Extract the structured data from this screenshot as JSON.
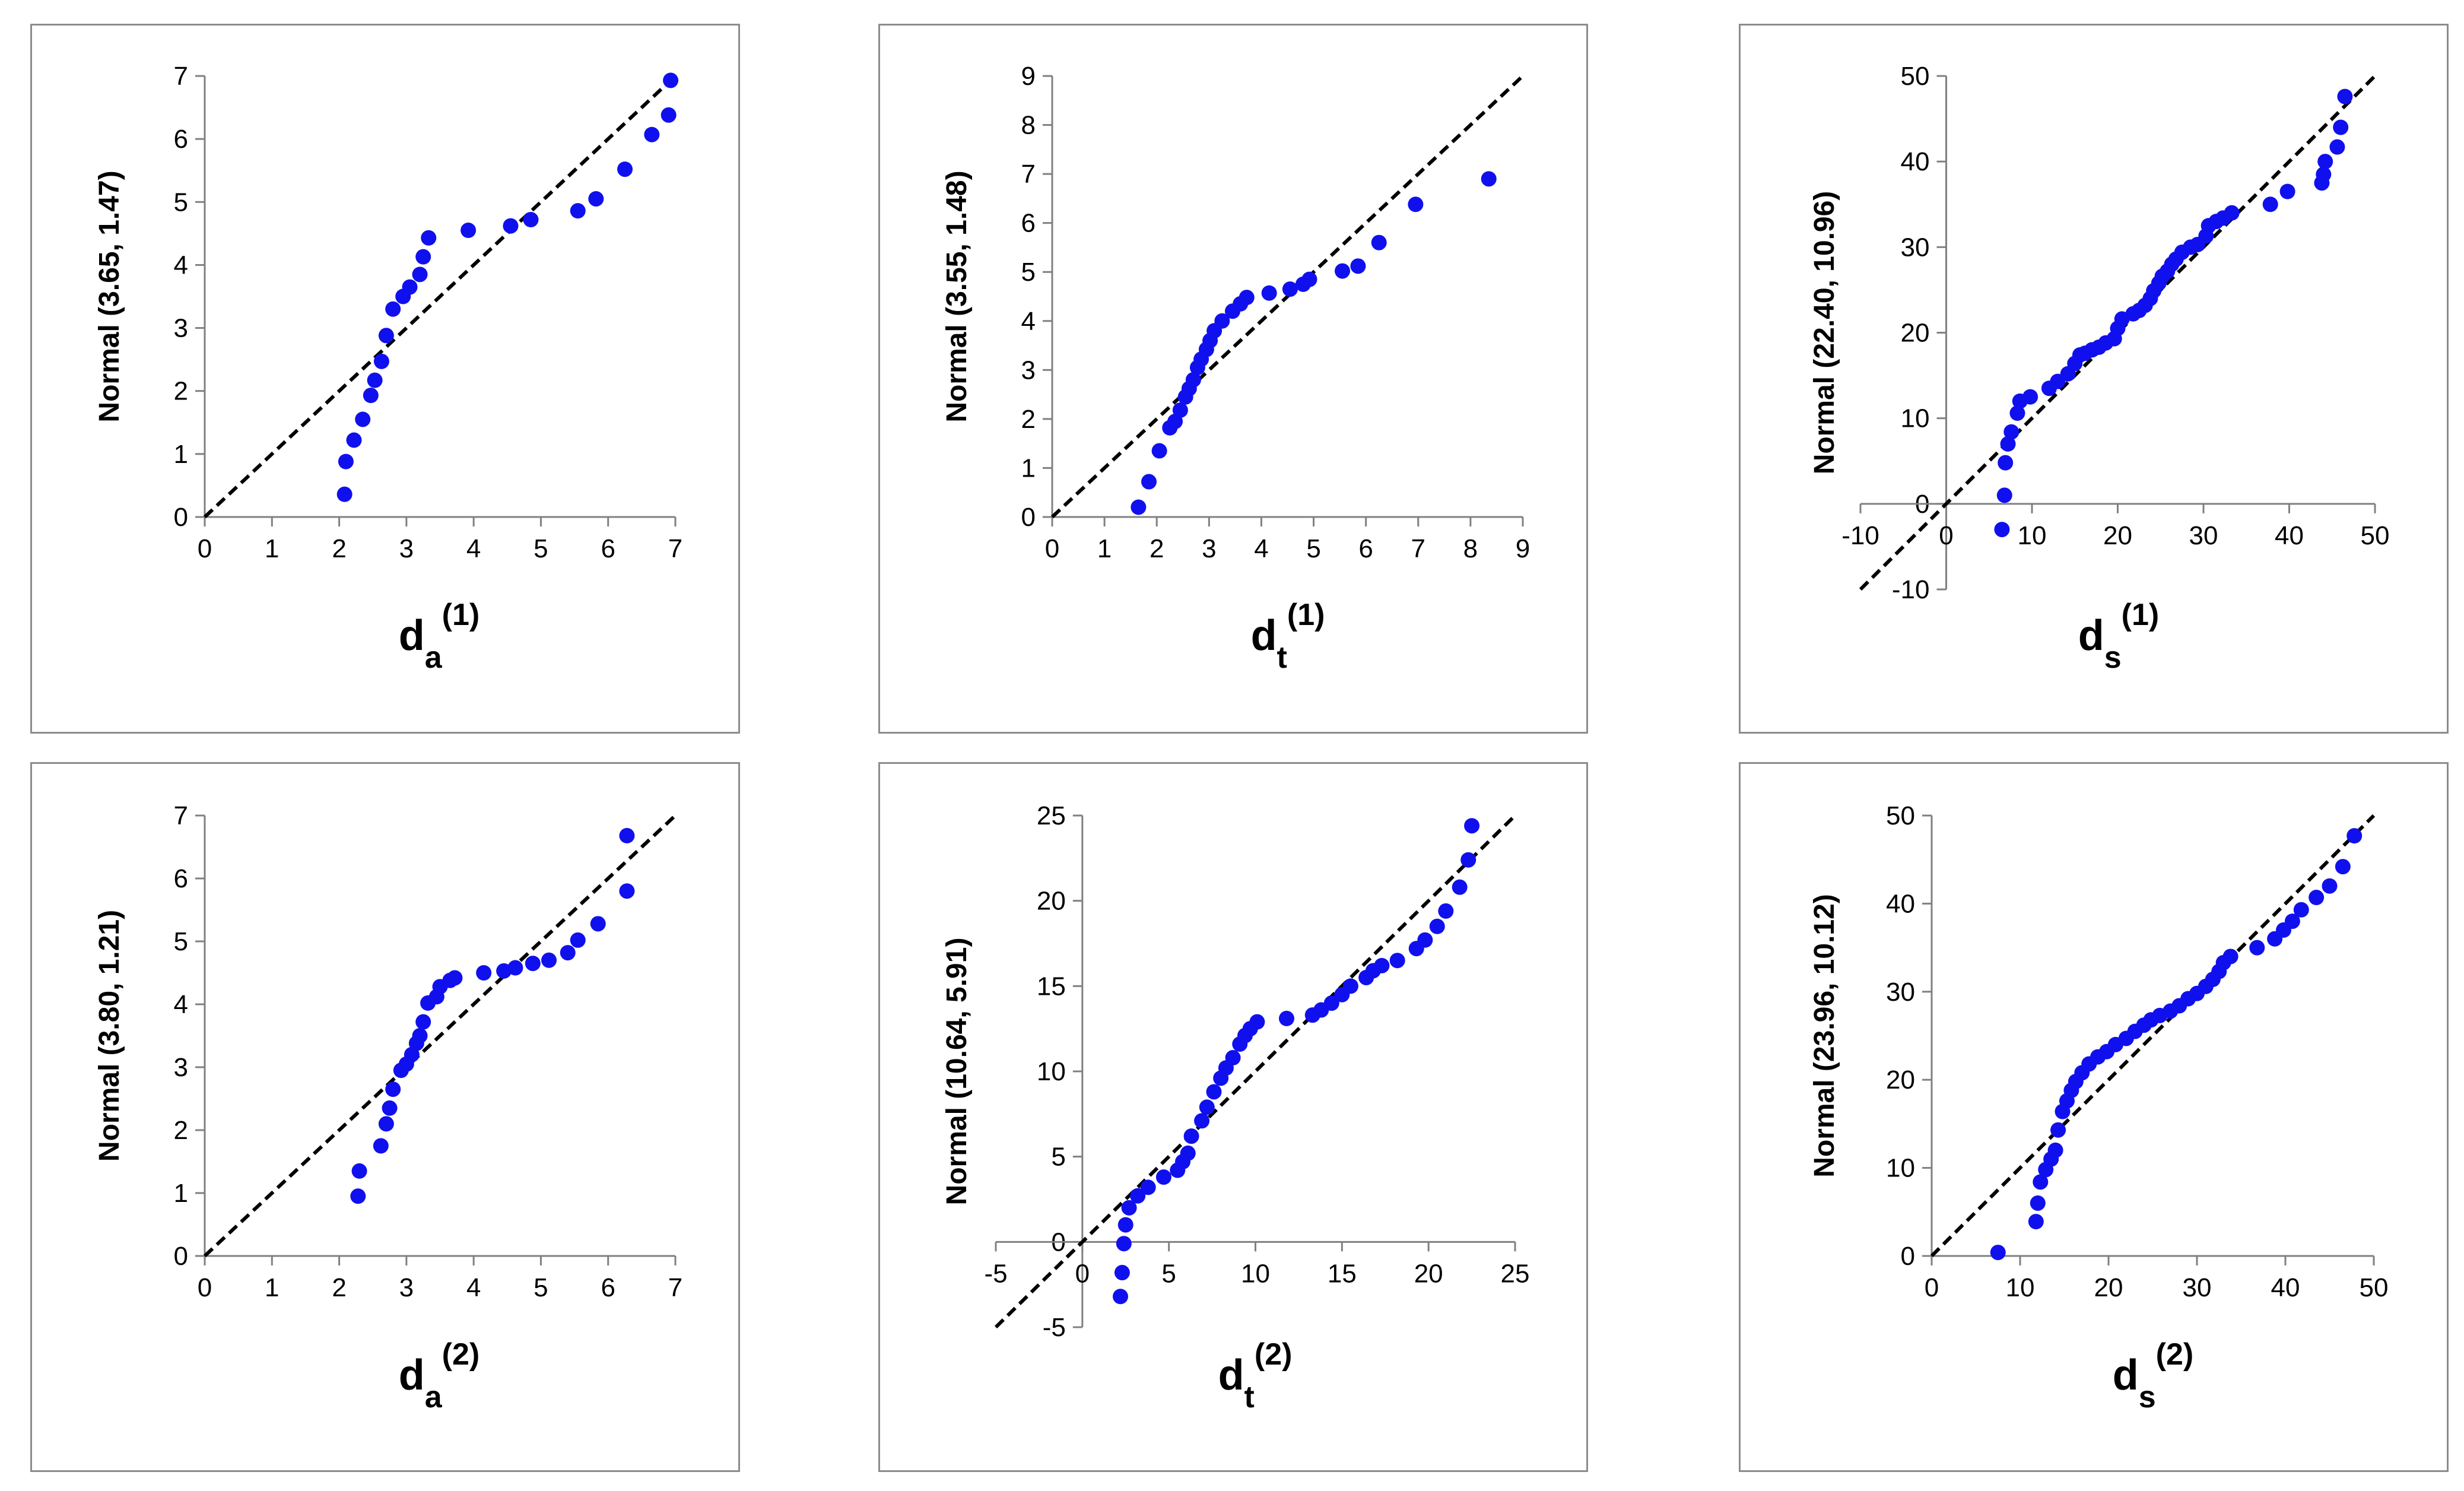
{
  "colors": {
    "points": "#1010EE",
    "reference_line": "#000000",
    "axis": "#808080",
    "frame": "#8c8c8c"
  },
  "chart_data": [
    {
      "type": "scatter",
      "title": "",
      "xlabel_base": "d",
      "xlabel_sub": "a",
      "xlabel_sup": "(1)",
      "ylabel": "Normal (3.65, 1.47)",
      "xlim": [
        0,
        7
      ],
      "ylim": [
        0,
        7
      ],
      "xticks": [
        0,
        1,
        2,
        3,
        4,
        5,
        6,
        7
      ],
      "yticks": [
        0,
        1,
        2,
        3,
        4,
        5,
        6,
        7
      ],
      "reference_line": [
        [
          0,
          0
        ],
        [
          7,
          7
        ]
      ],
      "points": [
        [
          2.08,
          0.36
        ],
        [
          2.1,
          0.88
        ],
        [
          2.22,
          1.22
        ],
        [
          2.35,
          1.55
        ],
        [
          2.47,
          1.93
        ],
        [
          2.53,
          2.17
        ],
        [
          2.63,
          2.47
        ],
        [
          2.7,
          2.88
        ],
        [
          2.8,
          3.3
        ],
        [
          2.95,
          3.5
        ],
        [
          3.05,
          3.65
        ],
        [
          3.2,
          3.85
        ],
        [
          3.25,
          4.13
        ],
        [
          3.33,
          4.43
        ],
        [
          3.92,
          4.55
        ],
        [
          4.55,
          4.62
        ],
        [
          4.85,
          4.72
        ],
        [
          5.55,
          4.86
        ],
        [
          5.82,
          5.05
        ],
        [
          6.25,
          5.52
        ],
        [
          6.65,
          6.07
        ],
        [
          6.9,
          6.38
        ],
        [
          6.93,
          6.93
        ]
      ]
    },
    {
      "type": "scatter",
      "title": "",
      "xlabel_base": "d",
      "xlabel_sub": "t",
      "xlabel_sup": "(1)",
      "ylabel": "Normal (3.55, 1.48)",
      "xlim": [
        0,
        9
      ],
      "ylim": [
        0,
        9
      ],
      "xticks": [
        0,
        1,
        2,
        3,
        4,
        5,
        6,
        7,
        8,
        9
      ],
      "yticks": [
        0,
        1,
        2,
        3,
        4,
        5,
        6,
        7,
        8,
        9
      ],
      "reference_line": [
        [
          0,
          0
        ],
        [
          9,
          9
        ]
      ],
      "points": [
        [
          1.65,
          0.2
        ],
        [
          1.85,
          0.72
        ],
        [
          2.05,
          1.35
        ],
        [
          2.25,
          1.82
        ],
        [
          2.35,
          1.95
        ],
        [
          2.45,
          2.18
        ],
        [
          2.55,
          2.45
        ],
        [
          2.62,
          2.62
        ],
        [
          2.7,
          2.8
        ],
        [
          2.78,
          3.05
        ],
        [
          2.85,
          3.22
        ],
        [
          2.95,
          3.42
        ],
        [
          3.02,
          3.6
        ],
        [
          3.1,
          3.8
        ],
        [
          3.25,
          4.0
        ],
        [
          3.45,
          4.2
        ],
        [
          3.6,
          4.35
        ],
        [
          3.72,
          4.48
        ],
        [
          4.15,
          4.57
        ],
        [
          4.55,
          4.65
        ],
        [
          4.8,
          4.75
        ],
        [
          4.92,
          4.85
        ],
        [
          5.55,
          5.02
        ],
        [
          5.85,
          5.12
        ],
        [
          6.25,
          5.6
        ],
        [
          6.95,
          6.38
        ],
        [
          8.35,
          6.9
        ]
      ]
    },
    {
      "type": "scatter",
      "title": "",
      "xlabel_base": "d",
      "xlabel_sub": "s",
      "xlabel_sup": "(1)",
      "ylabel": "Normal (22.40, 10.96)",
      "xlim": [
        -10,
        50
      ],
      "ylim": [
        -10,
        50
      ],
      "xticks": [
        -10,
        0,
        10,
        20,
        30,
        40,
        50
      ],
      "yticks": [
        -10,
        0,
        10,
        20,
        30,
        40,
        50
      ],
      "reference_line": [
        [
          -10,
          -10
        ],
        [
          50,
          50
        ]
      ],
      "points": [
        [
          6.5,
          -3
        ],
        [
          6.8,
          1
        ],
        [
          6.9,
          4.8
        ],
        [
          7.2,
          7
        ],
        [
          7.6,
          8.4
        ],
        [
          8.3,
          10.6
        ],
        [
          8.6,
          12
        ],
        [
          9.8,
          12.5
        ],
        [
          12,
          13.5
        ],
        [
          13,
          14.3
        ],
        [
          14.2,
          15.2
        ],
        [
          15,
          16.4
        ],
        [
          15.6,
          17.4
        ],
        [
          16.2,
          17.6
        ],
        [
          17,
          18
        ],
        [
          17.8,
          18.3
        ],
        [
          18.6,
          18.8
        ],
        [
          19.6,
          19.3
        ],
        [
          20,
          20.5
        ],
        [
          20.5,
          21.6
        ],
        [
          21.8,
          22.2
        ],
        [
          22.5,
          22.6
        ],
        [
          23.2,
          23.2
        ],
        [
          23.8,
          24
        ],
        [
          24.2,
          24.9
        ],
        [
          24.8,
          25.8
        ],
        [
          25.2,
          26.6
        ],
        [
          25.8,
          27.2
        ],
        [
          26.3,
          28
        ],
        [
          26.8,
          28.6
        ],
        [
          27.5,
          29.4
        ],
        [
          28.5,
          30
        ],
        [
          29.3,
          30.3
        ],
        [
          30.3,
          31.3
        ],
        [
          30.6,
          32.5
        ],
        [
          31.5,
          33
        ],
        [
          32.3,
          33.4
        ],
        [
          33.3,
          34
        ],
        [
          37.8,
          35
        ],
        [
          39.8,
          36.5
        ],
        [
          43.8,
          37.5
        ],
        [
          44,
          38.5
        ],
        [
          44.2,
          40
        ],
        [
          45.6,
          41.7
        ],
        [
          46,
          44
        ],
        [
          46.5,
          47.6
        ]
      ]
    },
    {
      "type": "scatter",
      "title": "",
      "xlabel_base": "d",
      "xlabel_sub": "a",
      "xlabel_sup": "(2)",
      "ylabel": "Normal (3.80, 1.21)",
      "xlim": [
        0,
        7
      ],
      "ylim": [
        0,
        7
      ],
      "xticks": [
        0,
        1,
        2,
        3,
        4,
        5,
        6,
        7
      ],
      "yticks": [
        0,
        1,
        2,
        3,
        4,
        5,
        6,
        7
      ],
      "reference_line": [
        [
          0,
          0
        ],
        [
          7,
          7
        ]
      ],
      "points": [
        [
          2.28,
          0.95
        ],
        [
          2.3,
          1.35
        ],
        [
          2.62,
          1.75
        ],
        [
          2.7,
          2.1
        ],
        [
          2.75,
          2.35
        ],
        [
          2.8,
          2.65
        ],
        [
          2.92,
          2.95
        ],
        [
          3.0,
          3.05
        ],
        [
          3.08,
          3.2
        ],
        [
          3.15,
          3.38
        ],
        [
          3.2,
          3.5
        ],
        [
          3.25,
          3.72
        ],
        [
          3.32,
          4.02
        ],
        [
          3.45,
          4.12
        ],
        [
          3.5,
          4.28
        ],
        [
          3.65,
          4.38
        ],
        [
          3.72,
          4.42
        ],
        [
          4.15,
          4.5
        ],
        [
          4.45,
          4.53
        ],
        [
          4.62,
          4.58
        ],
        [
          4.88,
          4.65
        ],
        [
          5.12,
          4.7
        ],
        [
          5.4,
          4.82
        ],
        [
          5.55,
          5.02
        ],
        [
          5.85,
          5.28
        ],
        [
          6.28,
          5.8
        ],
        [
          6.28,
          6.68
        ]
      ]
    },
    {
      "type": "scatter",
      "title": "",
      "xlabel_base": "d",
      "xlabel_sub": "t",
      "xlabel_sup": "(2)",
      "ylabel": "Normal (10.64, 5.91)",
      "xlim": [
        -5,
        25
      ],
      "ylim": [
        -5,
        25
      ],
      "xticks": [
        -5,
        0,
        5,
        10,
        15,
        20,
        25
      ],
      "yticks": [
        -5,
        0,
        5,
        10,
        15,
        20,
        25
      ],
      "reference_line": [
        [
          -5,
          -5
        ],
        [
          25,
          25
        ]
      ],
      "points": [
        [
          2.2,
          -3.2
        ],
        [
          2.3,
          -1.8
        ],
        [
          2.4,
          -0.1
        ],
        [
          2.5,
          1
        ],
        [
          2.7,
          2
        ],
        [
          3.2,
          2.7
        ],
        [
          3.8,
          3.2
        ],
        [
          4.7,
          3.8
        ],
        [
          5.5,
          4.2
        ],
        [
          5.8,
          4.7
        ],
        [
          6.1,
          5.2
        ],
        [
          6.3,
          6.2
        ],
        [
          6.9,
          7.1
        ],
        [
          7.2,
          7.9
        ],
        [
          7.6,
          8.8
        ],
        [
          8,
          9.6
        ],
        [
          8.3,
          10.2
        ],
        [
          8.7,
          10.8
        ],
        [
          9.1,
          11.6
        ],
        [
          9.4,
          12.1
        ],
        [
          9.7,
          12.5
        ],
        [
          10.1,
          12.9
        ],
        [
          11.8,
          13.1
        ],
        [
          13.3,
          13.3
        ],
        [
          13.8,
          13.6
        ],
        [
          14.4,
          14
        ],
        [
          15,
          14.5
        ],
        [
          15.5,
          15
        ],
        [
          16.4,
          15.5
        ],
        [
          16.8,
          15.9
        ],
        [
          17.3,
          16.2
        ],
        [
          18.2,
          16.5
        ],
        [
          19.3,
          17.2
        ],
        [
          19.8,
          17.7
        ],
        [
          20.5,
          18.5
        ],
        [
          21,
          19.4
        ],
        [
          21.8,
          20.8
        ],
        [
          22.3,
          22.4
        ],
        [
          22.5,
          24.4
        ]
      ]
    },
    {
      "type": "scatter",
      "title": "",
      "xlabel_base": "d",
      "xlabel_sub": "s",
      "xlabel_sup": "(2)",
      "ylabel": "Normal (23.96, 10.12)",
      "xlim": [
        0,
        50
      ],
      "ylim": [
        0,
        50
      ],
      "xticks": [
        0,
        10,
        20,
        30,
        40,
        50
      ],
      "yticks": [
        0,
        10,
        20,
        30,
        40,
        50
      ],
      "reference_line": [
        [
          0,
          0
        ],
        [
          50,
          50
        ]
      ],
      "points": [
        [
          7.5,
          0.4
        ],
        [
          11.8,
          3.9
        ],
        [
          12,
          6
        ],
        [
          12.3,
          8.4
        ],
        [
          12.9,
          9.8
        ],
        [
          13.5,
          11
        ],
        [
          14,
          12
        ],
        [
          14.3,
          14.3
        ],
        [
          14.8,
          16.4
        ],
        [
          15.3,
          17.6
        ],
        [
          15.8,
          18.8
        ],
        [
          16.3,
          19.8
        ],
        [
          17,
          20.8
        ],
        [
          17.8,
          21.8
        ],
        [
          18.8,
          22.6
        ],
        [
          19.8,
          23.2
        ],
        [
          20.8,
          24
        ],
        [
          22,
          24.7
        ],
        [
          23,
          25.5
        ],
        [
          24,
          26.2
        ],
        [
          24.8,
          26.8
        ],
        [
          25.8,
          27.3
        ],
        [
          27,
          27.8
        ],
        [
          28,
          28.4
        ],
        [
          29,
          29.2
        ],
        [
          30,
          29.8
        ],
        [
          31,
          30.6
        ],
        [
          31.8,
          31.4
        ],
        [
          32.5,
          32.3
        ],
        [
          33,
          33.3
        ],
        [
          33.8,
          34
        ],
        [
          36.8,
          35
        ],
        [
          38.8,
          36
        ],
        [
          39.8,
          37
        ],
        [
          40.8,
          38
        ],
        [
          41.8,
          39.3
        ],
        [
          43.5,
          40.7
        ],
        [
          45,
          42
        ],
        [
          46.5,
          44.2
        ],
        [
          47.8,
          47.7
        ]
      ]
    }
  ]
}
